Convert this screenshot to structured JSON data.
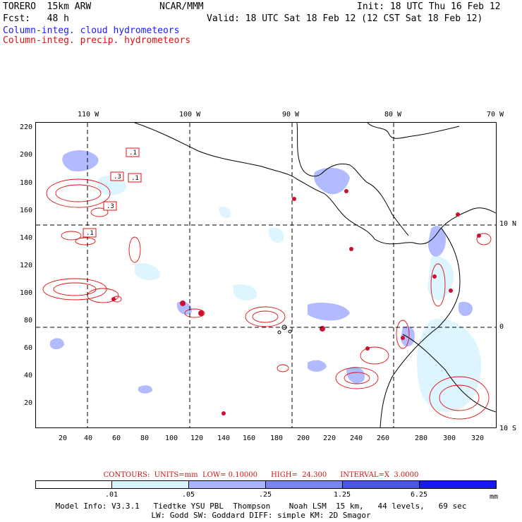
{
  "header": {
    "model": "TORERO  15km ARW",
    "org": "NCAR/MMM",
    "init": "Init: 18 UTC Thu 16 Feb 12",
    "fcst": "Fcst:   48 h",
    "valid": "Valid: 18 UTC Sat 18 Feb 12 (12 CST Sat 18 Feb 12)",
    "field_cloud": "Column-integ. cloud hydrometeors",
    "field_precip": "Column-integ. precip. hydrometeors"
  },
  "colors": {
    "cloud_contour": "#1a1aff",
    "precip_contour": "#e01010",
    "coast": "#000000",
    "grid": "#000000"
  },
  "axes": {
    "lon_ticks": [
      "110 W",
      "100 W",
      "90 W",
      "80 W",
      "70 W"
    ],
    "lat_ticks": [
      "10 N",
      "0",
      "10 S"
    ],
    "grid_x_ticks": [
      "20",
      "40",
      "60",
      "80",
      "100",
      "120",
      "140",
      "160",
      "180",
      "200",
      "220",
      "240",
      "260",
      "280",
      "300",
      "320"
    ],
    "grid_y_ticks": [
      "220",
      "200",
      "180",
      "160",
      "140",
      "120",
      "100",
      "80",
      "60",
      "40",
      "20"
    ]
  },
  "map": {
    "precip_labels": [
      ".1",
      ".3",
      ".1",
      ".3",
      ".1"
    ],
    "projection_grid": "dashed"
  },
  "contour_info": "CONTOURS:  UNITS=mm  LOW= 0.10000      HIGH=  24.300      INTERVAL=X  3.0000",
  "colorbar": {
    "colors": [
      "#ffffff",
      "#d9f4ff",
      "#aab4ff",
      "#7a86f5",
      "#4a55ee",
      "#1818f0"
    ],
    "labels": [
      ".01",
      ".05",
      ".25",
      "1.25",
      "6.25"
    ],
    "unit": "mm"
  },
  "footer": {
    "line1": "Model Info: V3.3.1   Tiedtke YSU PBL  Thompson    Noah LSM  15 km,   44 levels,   69 sec",
    "line2": "LW: Godd SW: Goddard DIFF: simple KM: 2D Smagor"
  }
}
